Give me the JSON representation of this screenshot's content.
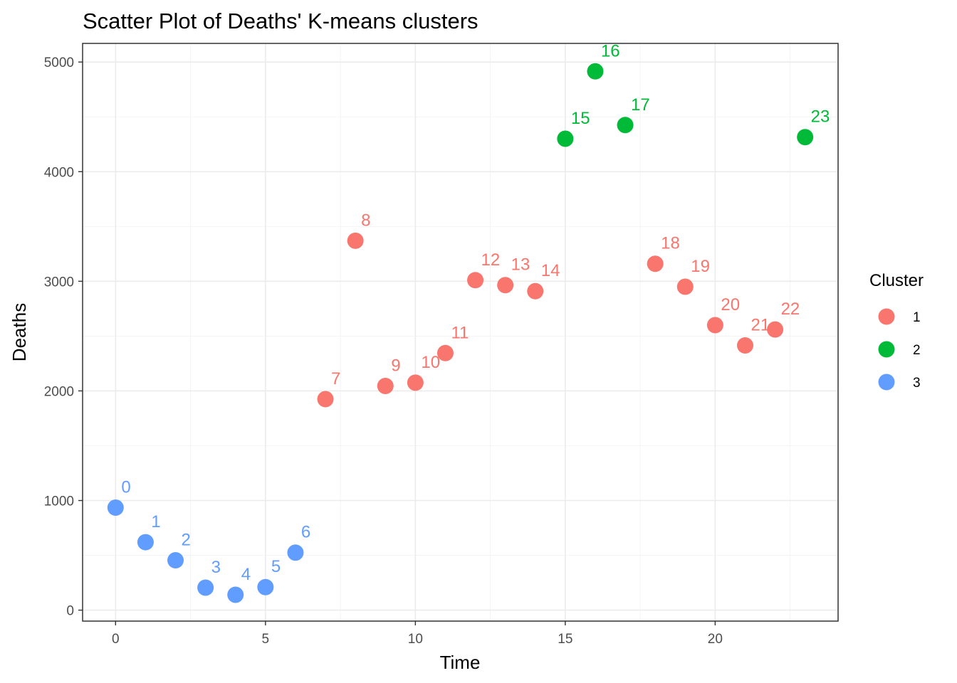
{
  "chart_data": {
    "type": "scatter",
    "title": "Scatter Plot of Deaths' K-means clusters",
    "xlabel": "Time",
    "ylabel": "Deaths",
    "xlim": [
      -1.1,
      24.1
    ],
    "ylim": [
      -100,
      5170
    ],
    "x_ticks": [
      0,
      5,
      10,
      15,
      20
    ],
    "y_ticks": [
      0,
      1000,
      2000,
      3000,
      4000,
      5000
    ],
    "grid": true,
    "legend": {
      "title": "Cluster",
      "position": "right",
      "entries": [
        {
          "label": "1",
          "color": "#F8766D"
        },
        {
          "label": "2",
          "color": "#00BA38"
        },
        {
          "label": "3",
          "color": "#619CFF"
        }
      ]
    },
    "points": [
      {
        "label": "0",
        "x": 0,
        "y": 935,
        "cluster": "3"
      },
      {
        "label": "1",
        "x": 1,
        "y": 620,
        "cluster": "3"
      },
      {
        "label": "2",
        "x": 2,
        "y": 455,
        "cluster": "3"
      },
      {
        "label": "3",
        "x": 3,
        "y": 205,
        "cluster": "3"
      },
      {
        "label": "4",
        "x": 4,
        "y": 140,
        "cluster": "3"
      },
      {
        "label": "5",
        "x": 5,
        "y": 210,
        "cluster": "3"
      },
      {
        "label": "6",
        "x": 6,
        "y": 525,
        "cluster": "3"
      },
      {
        "label": "7",
        "x": 7,
        "y": 1925,
        "cluster": "1"
      },
      {
        "label": "8",
        "x": 8,
        "y": 3370,
        "cluster": "1"
      },
      {
        "label": "9",
        "x": 9,
        "y": 2045,
        "cluster": "1"
      },
      {
        "label": "10",
        "x": 10,
        "y": 2075,
        "cluster": "1"
      },
      {
        "label": "11",
        "x": 11,
        "y": 2345,
        "cluster": "1"
      },
      {
        "label": "12",
        "x": 12,
        "y": 3010,
        "cluster": "1"
      },
      {
        "label": "13",
        "x": 13,
        "y": 2965,
        "cluster": "1"
      },
      {
        "label": "14",
        "x": 14,
        "y": 2910,
        "cluster": "1"
      },
      {
        "label": "15",
        "x": 15,
        "y": 4300,
        "cluster": "2"
      },
      {
        "label": "16",
        "x": 16,
        "y": 4915,
        "cluster": "2"
      },
      {
        "label": "17",
        "x": 17,
        "y": 4425,
        "cluster": "2"
      },
      {
        "label": "18",
        "x": 18,
        "y": 3160,
        "cluster": "1"
      },
      {
        "label": "19",
        "x": 19,
        "y": 2950,
        "cluster": "1"
      },
      {
        "label": "20",
        "x": 20,
        "y": 2600,
        "cluster": "1"
      },
      {
        "label": "21",
        "x": 21,
        "y": 2415,
        "cluster": "1"
      },
      {
        "label": "22",
        "x": 22,
        "y": 2560,
        "cluster": "1"
      },
      {
        "label": "23",
        "x": 23,
        "y": 4315,
        "cluster": "2"
      }
    ]
  }
}
